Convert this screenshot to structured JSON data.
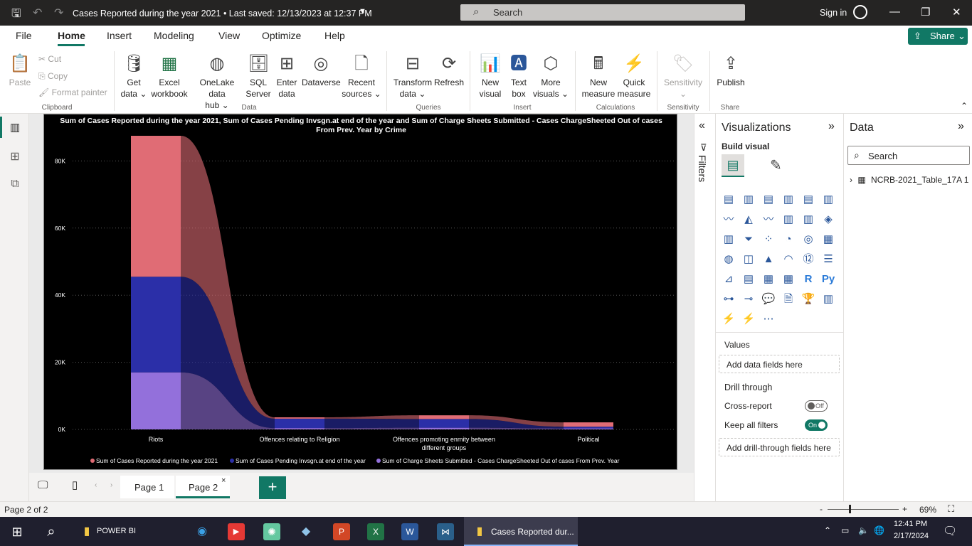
{
  "titlebar": {
    "doc_title": "Cases Reported during the year 2021 • Last saved: 12/13/2023 at 12:37 PM",
    "search_placeholder": "Search",
    "signin": "Sign in"
  },
  "menu": {
    "file": "File",
    "home": "Home",
    "insert": "Insert",
    "modeling": "Modeling",
    "view": "View",
    "optimize": "Optimize",
    "help": "Help",
    "share": "Share"
  },
  "ribbon": {
    "paste": "Paste",
    "cut": "Cut",
    "copy": "Copy",
    "format_painter": "Format painter",
    "get_data": "Get\ndata",
    "get_data_l1": "Get",
    "get_data_l2": "data ⌄",
    "excel_l1": "Excel",
    "excel_l2": "workbook",
    "onelake_l1": "OneLake data",
    "onelake_l2": "hub ⌄",
    "sql_l1": "SQL",
    "sql_l2": "Server",
    "enter_l1": "Enter",
    "enter_l2": "data",
    "dataverse": "Dataverse",
    "recent_l1": "Recent",
    "recent_l2": "sources ⌄",
    "transform_l1": "Transform",
    "transform_l2": "data ⌄",
    "refresh": "Refresh",
    "newvisual_l1": "New",
    "newvisual_l2": "visual",
    "textbox_l1": "Text",
    "textbox_l2": "box",
    "morevisuals_l1": "More",
    "morevisuals_l2": "visuals ⌄",
    "newmeasure_l1": "New",
    "newmeasure_l2": "measure",
    "quickmeasure_l1": "Quick",
    "quickmeasure_l2": "measure",
    "sensitivity": "Sensitivity",
    "publish": "Publish",
    "groups": {
      "clipboard": "Clipboard",
      "data": "Data",
      "queries": "Queries",
      "insert": "Insert",
      "calculations": "Calculations",
      "sensitivity": "Sensitivity",
      "share": "Share"
    }
  },
  "visualizations": {
    "title": "Visualizations",
    "build_visual": "Build visual",
    "values": "Values",
    "add_data_fields": "Add data fields here",
    "drill_through": "Drill through",
    "cross_report": "Cross-report",
    "cross_report_state": "Off",
    "keep_all_filters": "Keep all filters",
    "keep_all_filters_state": "On",
    "add_drill_fields": "Add drill-through fields here"
  },
  "filters": {
    "label": "Filters"
  },
  "data_pane": {
    "title": "Data",
    "search_placeholder": "Search",
    "table_name": "NCRB-2021_Table_17A 1"
  },
  "pages": {
    "page1": "Page 1",
    "page2": "Page 2",
    "add": "+"
  },
  "status": {
    "page_info": "Page 2 of 2",
    "zoom": "69%"
  },
  "taskbar": {
    "power_bi_folder": "POWER BI",
    "active_app": "Cases Reported dur...",
    "time": "12:41 PM",
    "date": "2/17/2024"
  },
  "colors": {
    "accent": "#117865",
    "series_reported": "#e06c75",
    "series_pending": "#2b2fa8",
    "series_chargesheets": "#9370db"
  },
  "chart_data": {
    "type": "ribbon",
    "title_line1": "Sum of Cases Reported during the year 2021, Sum of Cases Pending Invsgn.at end of the year and Sum of Charge Sheets Submitted - Cases ChargeSheeted Out of cases",
    "title_line2": "From Prev. Year by Crime",
    "categories": [
      "Riots",
      "Offences relating to Religion",
      "Offences promoting enmity between different groups",
      "Political"
    ],
    "category_labels": [
      [
        "Riots"
      ],
      [
        "Offences relating to Religion"
      ],
      [
        "Offences promoting enmity between",
        "different groups"
      ],
      [
        "Political"
      ]
    ],
    "y_ticks": [
      "0K",
      "20K",
      "40K",
      "60K",
      "80K"
    ],
    "ylim": [
      0,
      87500
    ],
    "grid": true,
    "legend_position": "bottom",
    "series": [
      {
        "name": "Sum of Cases Reported during the year 2021",
        "values": [
          42000,
          400,
          1100,
          1300
        ]
      },
      {
        "name": "Sum of Cases Pending Invsgn.at end of the year",
        "values": [
          28500,
          2800,
          2600,
          500
        ]
      },
      {
        "name": "Sum of Charge Sheets Submitted - Cases ChargeSheeted Out of cases From Prev. Year",
        "values": [
          17000,
          400,
          500,
          300
        ]
      }
    ]
  }
}
